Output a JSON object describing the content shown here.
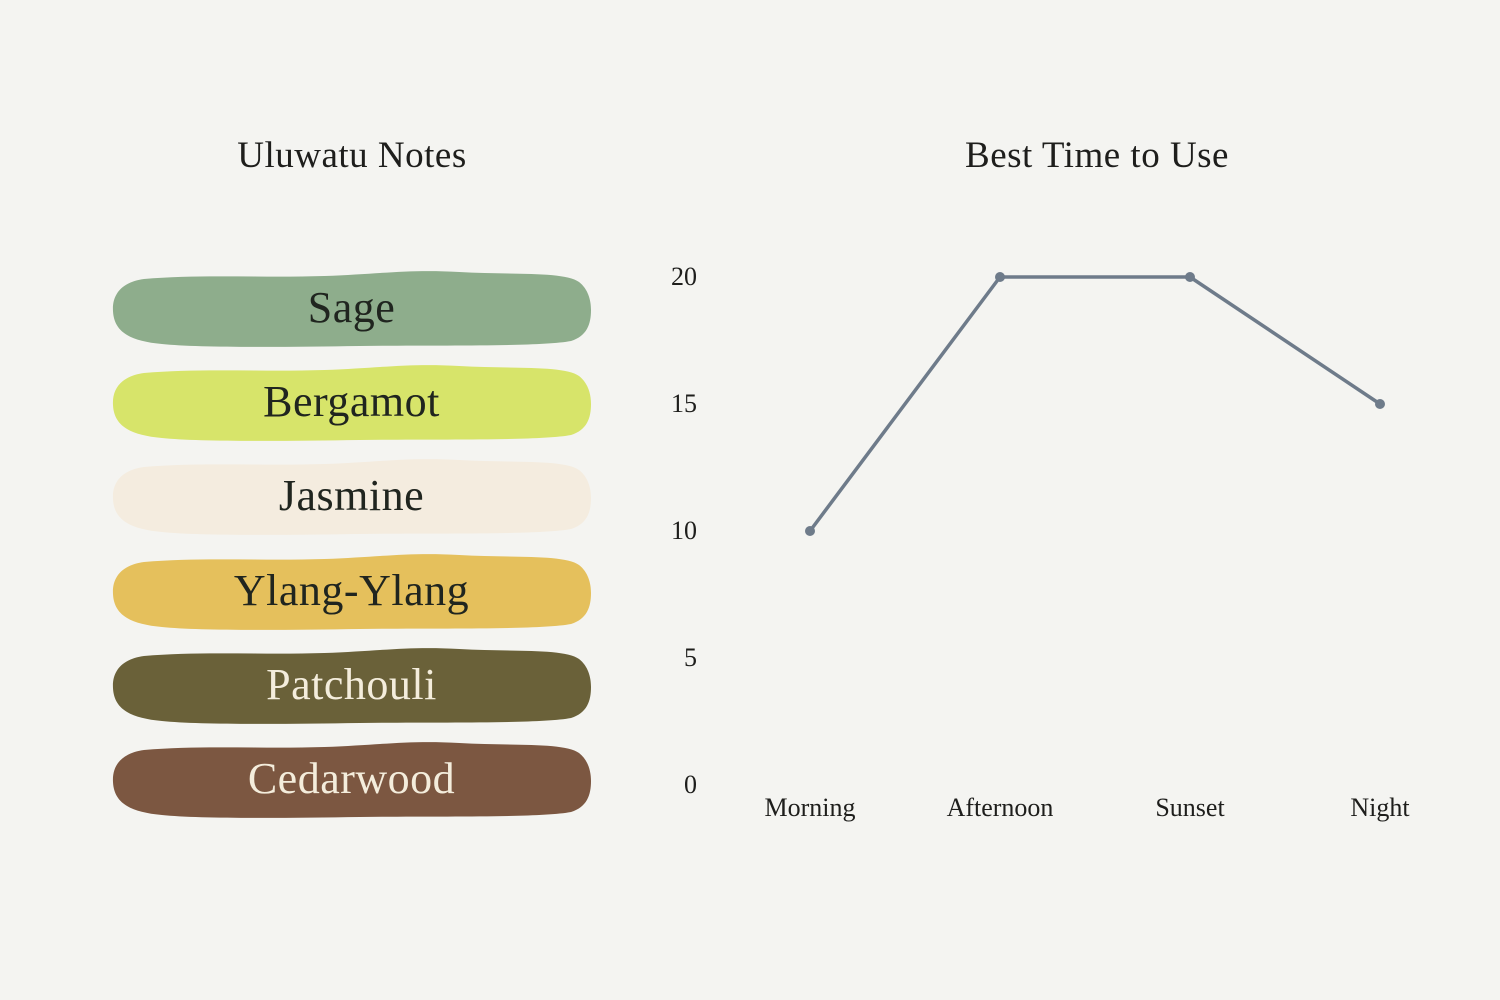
{
  "page": {
    "background": "#f4f4f1",
    "text_color": "#1e1e1c"
  },
  "notes": {
    "title": "Uluwatu Notes",
    "items": [
      {
        "label": "Sage",
        "fill": "#8ead8c",
        "text_color": "#20251f"
      },
      {
        "label": "Bergamot",
        "fill": "#d7e46a",
        "text_color": "#20251f"
      },
      {
        "label": "Jasmine",
        "fill": "#f4ecdf",
        "text_color": "#20251f"
      },
      {
        "label": "Ylang-Ylang",
        "fill": "#e5c05c",
        "text_color": "#20251f"
      },
      {
        "label": "Patchouli",
        "fill": "#6a6139",
        "text_color": "#f4eddc"
      },
      {
        "label": "Cedarwood",
        "fill": "#7c5741",
        "text_color": "#f4eddc"
      }
    ]
  },
  "chart_data": {
    "type": "line",
    "title": "Best Time to Use",
    "categories": [
      "Morning",
      "Afternoon",
      "Sunset",
      "Night"
    ],
    "values": [
      10,
      20,
      20,
      15
    ],
    "yticks": [
      0,
      5,
      10,
      15,
      20
    ],
    "ylim": [
      0,
      20
    ],
    "xlabel": "",
    "ylabel": "",
    "grid": false,
    "legend": false,
    "line_color": "#6e7b8a",
    "marker": "circle"
  }
}
